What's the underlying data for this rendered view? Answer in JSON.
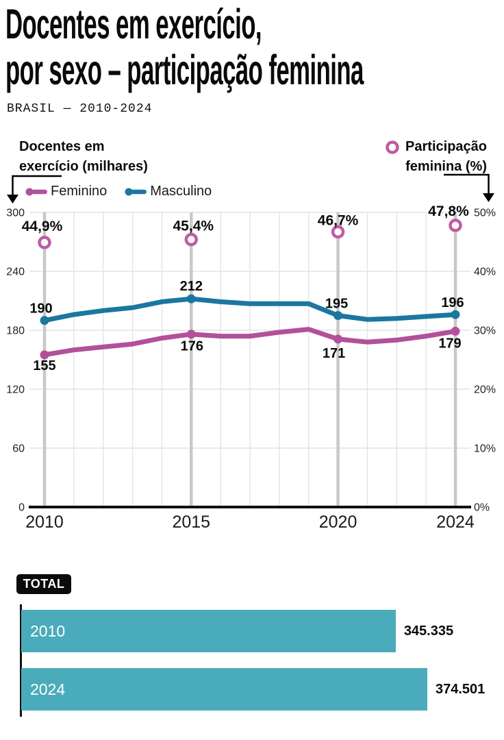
{
  "header": {
    "title_line1": "Docentes em exercício,",
    "title_line2": "por sexo – participação feminina",
    "subtitle": "BRASIL — 2010-2024"
  },
  "axis_headers": {
    "left_line1": "Docentes em",
    "left_line2": "exercício (milhares)",
    "right_line1": "Participação",
    "right_line2": "feminina (%)"
  },
  "colors": {
    "feminino": "#b2509a",
    "masculino": "#1b77a0",
    "marker_ring": "#bf5ca3",
    "bar_teal": "#4aacba",
    "grid": "#e4e4e4",
    "grid_highlight": "#c8c8c8",
    "axis": "#111111",
    "text": "#111111"
  },
  "chart_data": {
    "line_chart": {
      "type": "line",
      "x": [
        2010,
        2011,
        2012,
        2013,
        2014,
        2015,
        2016,
        2017,
        2018,
        2019,
        2020,
        2021,
        2022,
        2023,
        2024
      ],
      "series": [
        {
          "name": "Feminino",
          "color": "#b2509a",
          "values": [
            155,
            160,
            163,
            166,
            172,
            176,
            174,
            174,
            178,
            181,
            171,
            168,
            170,
            174,
            179
          ]
        },
        {
          "name": "Masculino",
          "color": "#1b77a0",
          "values": [
            190,
            196,
            200,
            203,
            209,
            212,
            209,
            207,
            207,
            207,
            195,
            191,
            192,
            194,
            196
          ]
        }
      ],
      "labeled_years": [
        2010,
        2015,
        2020,
        2024
      ],
      "labeled_values": {
        "Feminino": {
          "2010": "155",
          "2015": "176",
          "2020": "171",
          "2024": "179"
        },
        "Masculino": {
          "2010": "190",
          "2015": "212",
          "2020": "195",
          "2024": "196"
        }
      },
      "percent_markers": {
        "years": [
          2010,
          2015,
          2020,
          2024
        ],
        "values": [
          44.9,
          45.4,
          46.7,
          47.8
        ],
        "labels": [
          "44,9%",
          "45,4%",
          "46,7%",
          "47,8%"
        ]
      },
      "left_axis": {
        "title": "Docentes em exercício (milhares)",
        "range": [
          0,
          300
        ],
        "ticks": [
          "300",
          "240",
          "180",
          "120",
          "60",
          "0"
        ],
        "tick_values": [
          300,
          240,
          180,
          120,
          60,
          0
        ]
      },
      "right_axis": {
        "title": "Participação feminina (%)",
        "range": [
          0,
          50
        ],
        "ticks": [
          "50%",
          "40%",
          "30%",
          "20%",
          "10%",
          "0%"
        ],
        "tick_values": [
          50,
          40,
          30,
          20,
          10,
          0
        ]
      },
      "x_tick_labels": [
        "2010",
        "2015",
        "2020",
        "2024"
      ],
      "grid": true,
      "legend_position": "top-left"
    },
    "bar_chart": {
      "type": "bar",
      "title": "TOTAL",
      "categories": [
        "2010",
        "2024"
      ],
      "values": [
        345335,
        374501
      ],
      "value_labels": [
        "345.335",
        "374.501"
      ],
      "color": "#4aacba"
    }
  }
}
